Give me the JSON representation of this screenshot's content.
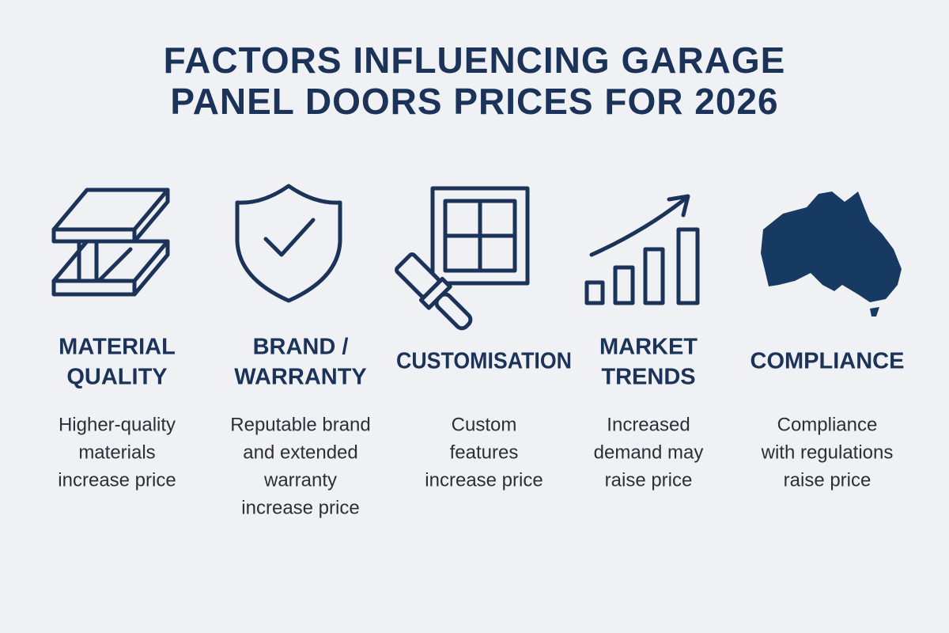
{
  "header": {
    "title_lines": [
      "FACTORS INFLUENCING GARAGE",
      "PANEL DOORS PRICES FOR 2026"
    ]
  },
  "factors": [
    {
      "heading_lines": [
        "MATERIAL",
        "QUALITY"
      ],
      "description_lines": [
        "Higher-quality",
        "materials",
        "increase price"
      ]
    },
    {
      "heading_lines": [
        "BRAND /",
        "WARRANTY"
      ],
      "description_lines": [
        "Reputable brand",
        "and extended",
        "warranty",
        "increase price"
      ]
    },
    {
      "heading_lines": [
        "CUSTOMISATION"
      ],
      "description_lines": [
        "Custom",
        "features",
        "increase price"
      ]
    },
    {
      "heading_lines": [
        "MARKET",
        "TRENDS"
      ],
      "description_lines": [
        "Increased",
        "demand may",
        "raise price"
      ]
    },
    {
      "heading_lines": [
        "COMPLIANCE"
      ],
      "description_lines": [
        "Compliance",
        "with regulations",
        "raise price"
      ]
    }
  ]
}
